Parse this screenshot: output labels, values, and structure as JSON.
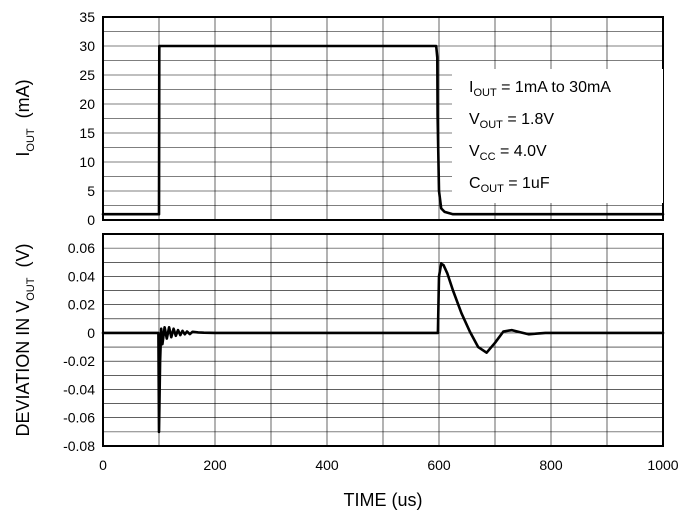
{
  "chart_data": [
    {
      "type": "line",
      "panel": "top",
      "ylabel_main": "I",
      "ylabel_sub": "OUT",
      "ylabel_unit": "(mA)",
      "ylim": [
        0,
        35
      ],
      "yticks": [
        "0",
        "5",
        "10",
        "15",
        "20",
        "25",
        "30",
        "35"
      ],
      "xlim": [
        0,
        1000
      ],
      "grid": true,
      "series": [
        {
          "x": [
            0,
            100,
            100.5,
            595,
            597,
            597.5,
            600,
            604,
            610,
            625,
            1000
          ],
          "y": [
            1,
            1,
            30,
            30,
            28,
            18,
            5,
            2,
            1.4,
            1,
            1
          ]
        }
      ],
      "annotations": [
        {
          "main": "I",
          "sub": "OUT",
          "rest": " = 1mA to 30mA"
        },
        {
          "main": "V",
          "sub": "OUT",
          "rest": " = 1.8V"
        },
        {
          "main": "V",
          "sub": "CC",
          "rest": " = 4.0V"
        },
        {
          "main": "C",
          "sub": "OUT",
          "rest": " = 1uF"
        }
      ]
    },
    {
      "type": "line",
      "panel": "bottom",
      "ylabel_main": "DEVIATION IN V",
      "ylabel_sub": "OUT",
      "ylabel_unit": "(V)",
      "ylim": [
        -0.08,
        0.07
      ],
      "yticks": [
        "-0.08",
        "-0.06",
        "-0.04",
        "-0.02",
        "0",
        "0.02",
        "0.04",
        "0.06"
      ],
      "xlabel": "TIME (us)",
      "xlim": [
        0,
        1000
      ],
      "xticks": [
        "0",
        "200",
        "400",
        "600",
        "800",
        "1000"
      ],
      "grid": true,
      "series": [
        {
          "x": [
            0,
            99,
            100,
            102,
            104,
            106,
            110,
            114,
            118,
            122,
            126,
            130,
            134,
            138,
            142,
            146,
            150,
            155,
            160,
            170,
            180,
            200,
            250,
            300,
            400,
            500,
            598,
            600,
            604,
            608,
            615,
            625,
            640,
            655,
            670,
            685,
            700,
            715,
            730,
            745,
            760,
            775,
            790,
            800,
            1000
          ],
          "y": [
            0,
            0,
            -0.07,
            -0.02,
            0.003,
            -0.008,
            0.004,
            -0.004,
            0.004,
            -0.003,
            0.003,
            -0.002,
            0.002,
            -0.0015,
            0.0015,
            -0.001,
            0.001,
            -0.0008,
            0.0008,
            0.0004,
            0.0002,
            0,
            0,
            0,
            0,
            0,
            0,
            0.04,
            0.049,
            0.048,
            0.042,
            0.03,
            0.014,
            0.001,
            -0.01,
            -0.014,
            -0.007,
            0.001,
            0.002,
            0.0005,
            -0.001,
            -0.0005,
            0,
            0,
            0
          ]
        }
      ]
    }
  ]
}
